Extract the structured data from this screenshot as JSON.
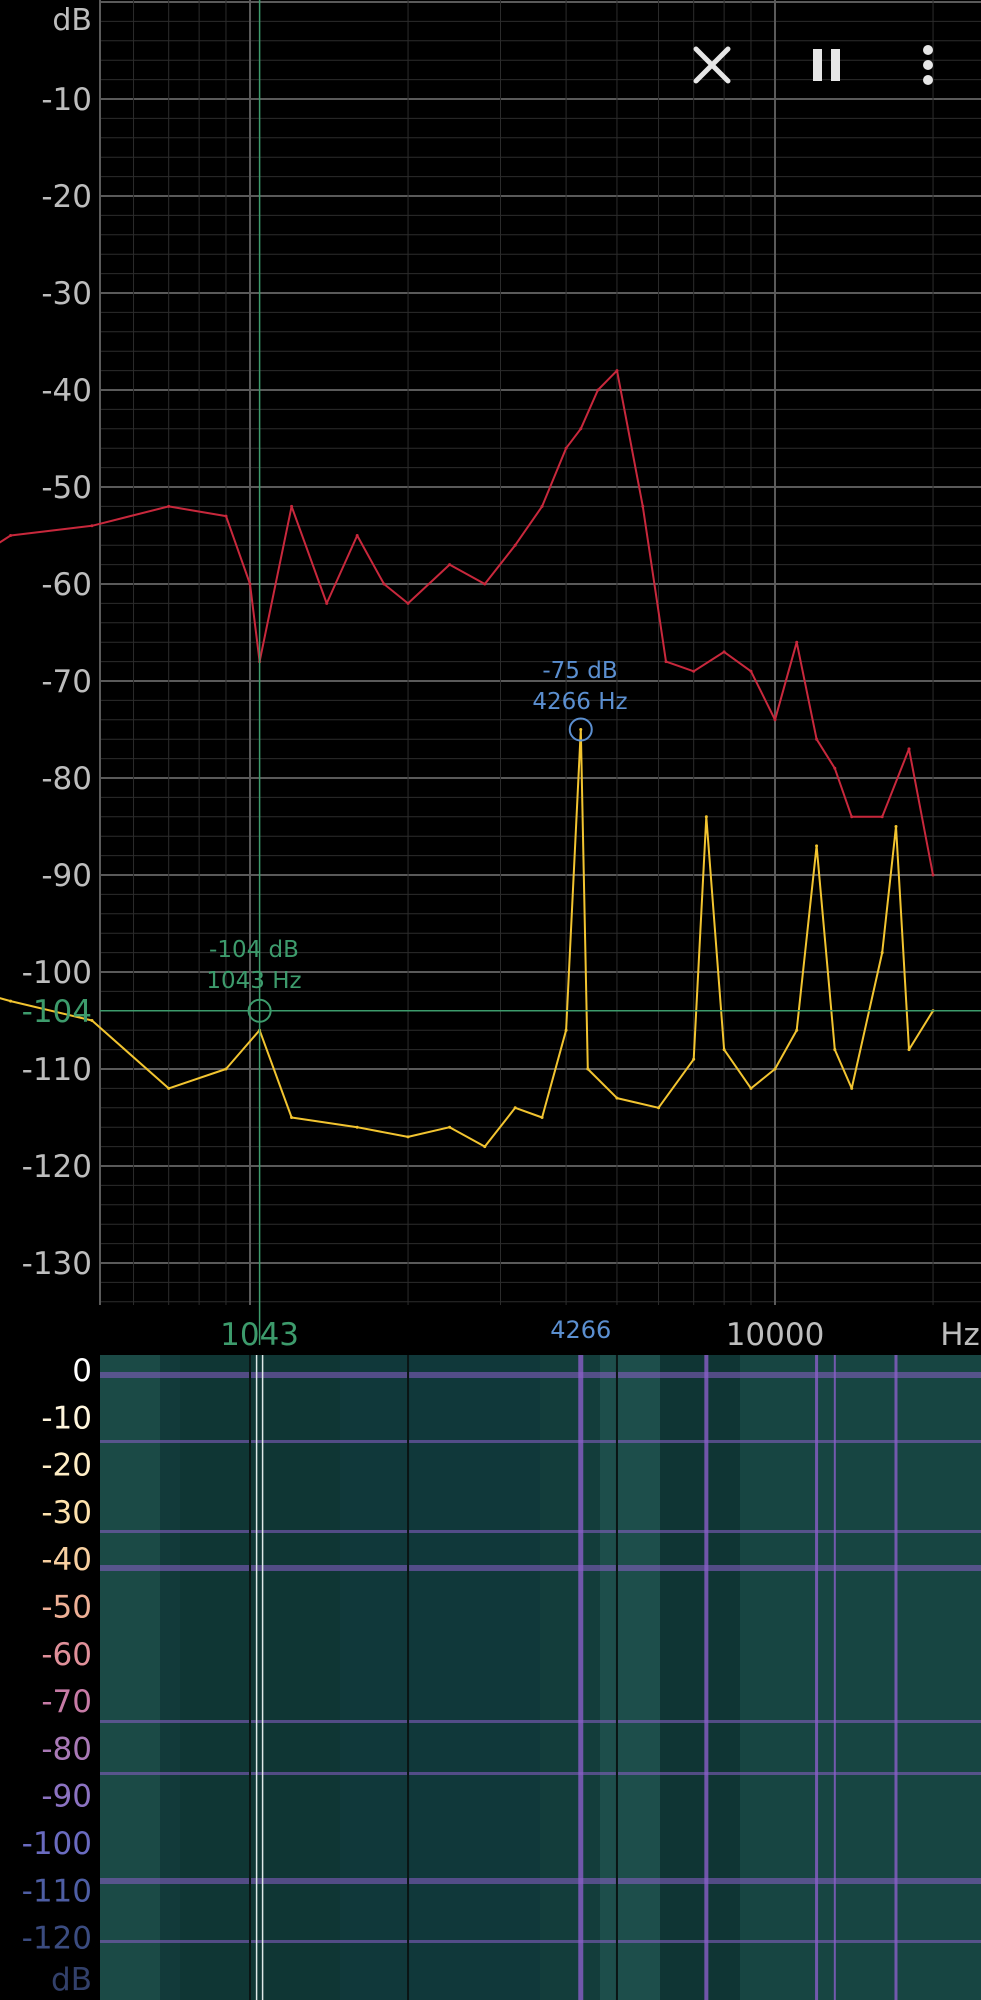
{
  "toolbar": {
    "close_icon": "close-icon",
    "pause_icon": "pause-icon",
    "more_icon": "more-vert-icon"
  },
  "spectrum": {
    "y_unit": "dB",
    "y_ticks": [
      "-10",
      "-20",
      "-30",
      "-40",
      "-50",
      "-60",
      "-70",
      "-80",
      "-90",
      "-100",
      "-110",
      "-120",
      "-130"
    ],
    "x_tick_labels": [
      "10000",
      "Hz"
    ],
    "cursor_y_label": "-104",
    "cursor_x_label": "1043",
    "peak_x_label": "4266",
    "cursor_marker": {
      "db": "-104 dB",
      "hz": "1043 Hz"
    },
    "peak_marker": {
      "db": "-75 dB",
      "hz": "4266 Hz"
    },
    "colors": {
      "background": "#000000",
      "grid_major": "#5a5a5a",
      "grid_minor": "#2c2c2c",
      "axis_text": "#bdbdbd",
      "cursor": "#3d9b6c",
      "peak": "#5b8fd0",
      "peak_hold_curve": "#c8283c",
      "live_curve": "#f2c430"
    }
  },
  "spectrogram": {
    "y_ticks": [
      "0",
      "-10",
      "-20",
      "-30",
      "-40",
      "-50",
      "-60",
      "-70",
      "-80",
      "-90",
      "-100",
      "-110",
      "-120"
    ],
    "y_unit": "dB",
    "tick_colors": [
      "#ffffff",
      "#fff6dd",
      "#ffeec6",
      "#ffe3ad",
      "#f7cfa0",
      "#eeb096",
      "#e0909a",
      "#c77ba6",
      "#a979b6",
      "#8c73c2",
      "#6a6bc0",
      "#4e5ea4",
      "#3b4c80"
    ],
    "colors": {
      "base": "#123a3a",
      "band": "#8a5ec8"
    }
  },
  "chart_data": {
    "type": "line",
    "title": "",
    "xlabel": "Hz",
    "ylabel": "dB",
    "x_scale": "log",
    "ylim": [
      -135,
      0
    ],
    "series": [
      {
        "x": [
          220,
          350,
          500,
          700,
          900,
          1000,
          1043,
          1200,
          1400,
          1600,
          1800,
          2000,
          2400,
          2800,
          3200,
          3600,
          4000,
          4266,
          4600,
          5000,
          5600,
          6200,
          7000,
          8000,
          9000,
          10000,
          11000,
          12000,
          13000,
          14000,
          16000,
          18000,
          20000
        ],
        "values": [
          -62,
          -55,
          -54,
          -52,
          -53,
          -60,
          -68,
          -52,
          -62,
          -55,
          -60,
          -62,
          -58,
          -60,
          -56,
          -52,
          -46,
          -44,
          -40,
          -38,
          -52,
          -68,
          -69,
          -67,
          -69,
          -74,
          -66,
          -76,
          -79,
          -84,
          -84,
          -77,
          -90
        ]
      },
      {
        "x": [
          220,
          350,
          500,
          700,
          900,
          1043,
          1200,
          1600,
          2000,
          2400,
          2800,
          3200,
          3600,
          4000,
          4266,
          4400,
          5000,
          6000,
          7000,
          7400,
          8000,
          9000,
          10000,
          11000,
          12000,
          13000,
          14000,
          16000,
          17000,
          18000,
          20000
        ],
        "values": [
          -100,
          -103,
          -105,
          -112,
          -110,
          -106,
          -115,
          -116,
          -117,
          -116,
          -118,
          -114,
          -115,
          -106,
          -75,
          -110,
          -113,
          -114,
          -109,
          -84,
          -108,
          -112,
          -110,
          -106,
          -87,
          -108,
          -112,
          -98,
          -85,
          -108,
          -104
        ]
      }
    ]
  }
}
